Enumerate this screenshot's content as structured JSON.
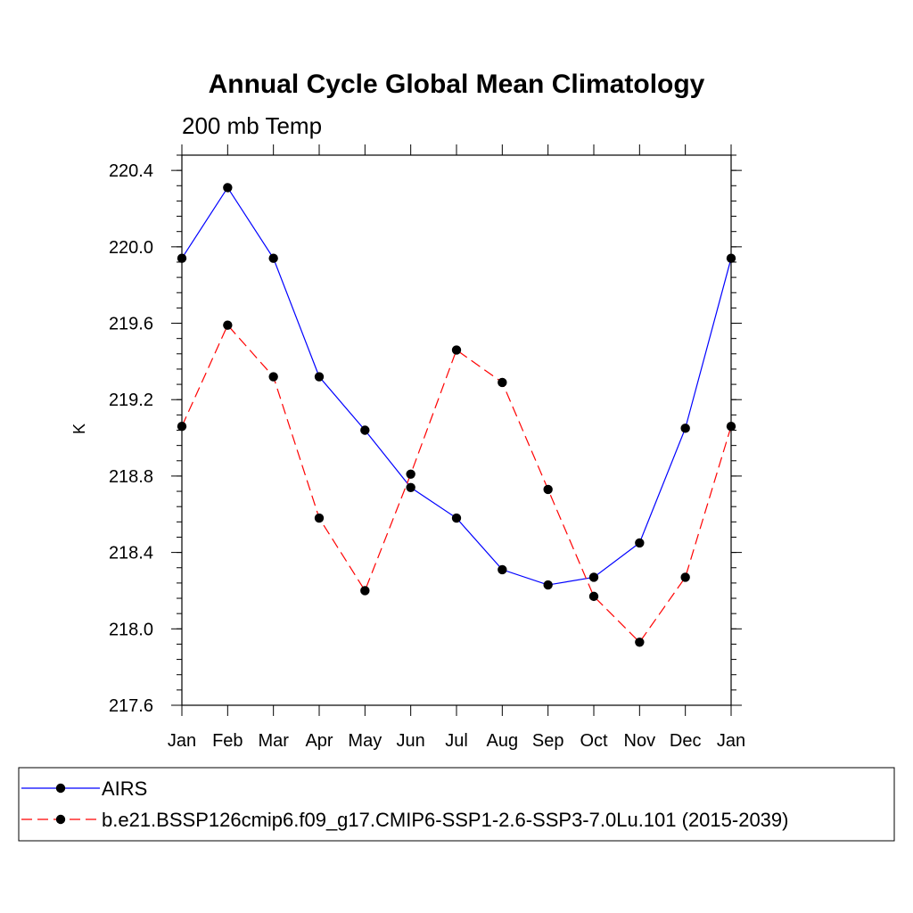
{
  "chart_data": {
    "type": "line",
    "title": "Annual Cycle Global Mean Climatology",
    "subtitle": "200 mb Temp",
    "xlabel": "",
    "ylabel": "K",
    "categories": [
      "Jan",
      "Feb",
      "Mar",
      "Apr",
      "May",
      "Jun",
      "Jul",
      "Aug",
      "Sep",
      "Oct",
      "Nov",
      "Dec",
      "Jan"
    ],
    "ylim": [
      217.6,
      220.48
    ],
    "yticks": [
      "220.4",
      "220.0",
      "219.6",
      "219.2",
      "218.8",
      "218.4",
      "218.0",
      "217.6"
    ],
    "ytick_values": [
      220.4,
      220.0,
      219.6,
      219.2,
      218.8,
      218.4,
      218.0,
      217.6
    ],
    "series": [
      {
        "name": "AIRS",
        "color": "#0000ff",
        "dash": "solid",
        "values": [
          219.94,
          220.31,
          219.94,
          219.32,
          219.04,
          218.74,
          218.58,
          218.31,
          218.23,
          218.27,
          218.45,
          219.05,
          219.94
        ]
      },
      {
        "name": "b.e21.BSSP126cmip6.f09_g17.CMIP6-SSP1-2.6-SSP3-7.0Lu.101 (2015-2039)",
        "color": "#ff0000",
        "dash": "dashed",
        "values": [
          219.06,
          219.59,
          219.32,
          218.58,
          218.2,
          218.81,
          219.46,
          219.29,
          218.73,
          218.17,
          217.93,
          218.27,
          219.06
        ]
      }
    ],
    "legend_position": "bottom"
  }
}
